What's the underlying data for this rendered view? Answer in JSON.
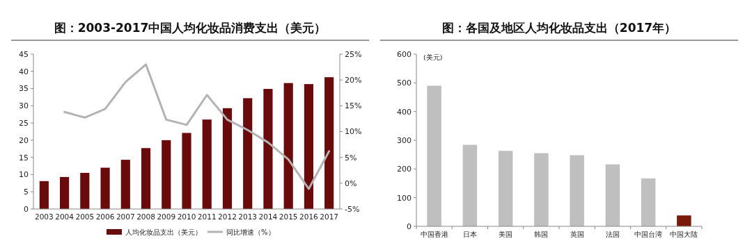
{
  "chart_data": [
    {
      "type": "bar",
      "title": "图：2003-2017中国人均化妆品消费支出（美元）",
      "categories": [
        "2003",
        "2004",
        "2005",
        "2006",
        "2007",
        "2008",
        "2009",
        "2010",
        "2011",
        "2012",
        "2013",
        "2014",
        "2015",
        "2016",
        "2017"
      ],
      "series": [
        {
          "name": "人均化妆品支出（美元）",
          "color": "#6b0a0a",
          "values": [
            8.1,
            9.3,
            10.5,
            12,
            14.3,
            17.7,
            20,
            22.1,
            26,
            29.3,
            32.2,
            34.9,
            36.6,
            36.3,
            38.3
          ]
        },
        {
          "name": "同比增速（%）",
          "type": "line",
          "axis": "y2",
          "color": "#b3b3b3",
          "values": [
            null,
            13.8,
            12.7,
            14.4,
            19.6,
            23,
            12.3,
            11.3,
            17.1,
            12.3,
            10.3,
            7.9,
            4.6,
            -1.1,
            6.2
          ]
        }
      ],
      "ylim": [
        0,
        45
      ],
      "yticks": [
        0,
        5,
        10,
        15,
        20,
        25,
        30,
        35,
        40,
        45
      ],
      "y2lim": [
        -5,
        25
      ],
      "y2ticks": [
        {
          "value": -5,
          "label": "-5%"
        },
        {
          "value": 0,
          "label": "0%"
        },
        {
          "value": 5,
          "label": "5%"
        },
        {
          "value": 10,
          "label": "10%"
        },
        {
          "value": 15,
          "label": "15%"
        },
        {
          "value": 20,
          "label": "20%"
        },
        {
          "value": 25,
          "label": "25%"
        }
      ],
      "grid": false,
      "legend": "bottom",
      "marker": "none",
      "line_style": "solid"
    },
    {
      "type": "bar",
      "title": "图：各国及地区人均化妆品支出（2017年）",
      "ylabel": "(美元)",
      "categories": [
        "中国香港",
        "日本",
        "美国",
        "韩国",
        "英国",
        "法国",
        "中国台湾",
        "中国大陆"
      ],
      "values": [
        490,
        284,
        263,
        255,
        248,
        216,
        167,
        38
      ],
      "colors": [
        "#bfbfbf",
        "#bfbfbf",
        "#bfbfbf",
        "#bfbfbf",
        "#bfbfbf",
        "#bfbfbf",
        "#bfbfbf",
        "#7b1a0a"
      ],
      "ylim": [
        0,
        600
      ],
      "yticks": [
        0,
        100,
        200,
        300,
        400,
        500,
        600
      ],
      "grid": false,
      "legend": false
    }
  ]
}
